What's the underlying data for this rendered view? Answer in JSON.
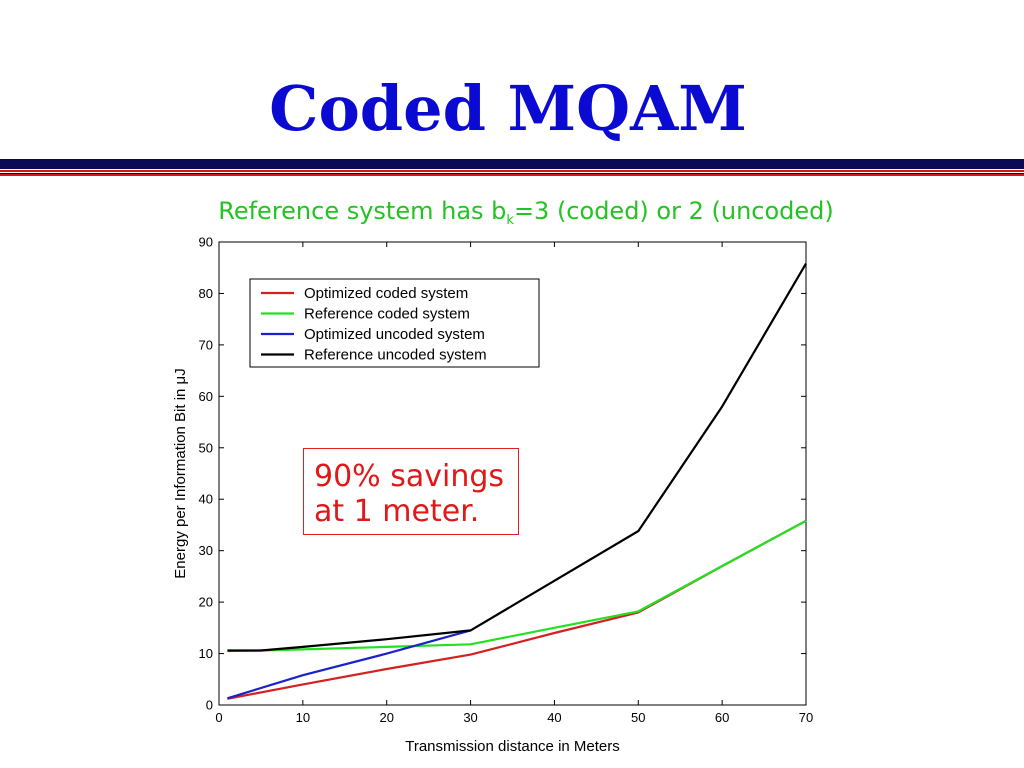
{
  "slide": {
    "title": "Coded MQAM",
    "subtitle_main": "Reference system has b",
    "subtitle_sub": "k",
    "subtitle_rest": "=3 (coded) or 2 (uncoded)",
    "callout_line1": "90% savings",
    "callout_line2": "at 1 meter.",
    "colors": {
      "title": "#0a0ad2",
      "subtitle": "#22c322",
      "rule_navy": "#0a0a55",
      "rule_red": "#d01818",
      "callout": "#e01818"
    }
  },
  "chart_data": {
    "type": "line",
    "xlabel": "Transmission distance in Meters",
    "ylabel": "Energy per Information Bit in μJ",
    "xlim": [
      0,
      70
    ],
    "ylim": [
      0,
      90
    ],
    "xticks": [
      0,
      10,
      20,
      30,
      40,
      50,
      60,
      70
    ],
    "yticks": [
      0,
      10,
      20,
      30,
      40,
      50,
      60,
      70,
      80,
      90
    ],
    "grid": false,
    "legend_position": "top-left",
    "series": [
      {
        "name": "Optimized coded system",
        "color": "#d42020",
        "x": [
          1,
          10,
          20,
          30,
          40,
          50,
          60,
          70
        ],
        "y": [
          1.2,
          4.0,
          7.0,
          9.8,
          14.0,
          18.0,
          27.0,
          35.8
        ]
      },
      {
        "name": "Reference coded system",
        "color": "#22e022",
        "x": [
          1,
          5,
          10,
          20,
          30,
          40,
          50,
          60,
          70
        ],
        "y": [
          10.5,
          10.6,
          10.8,
          11.3,
          11.8,
          15.0,
          18.2,
          27.0,
          35.8
        ]
      },
      {
        "name": "Optimized uncoded system",
        "color": "#1a22c8",
        "x": [
          1,
          10,
          20,
          30
        ],
        "y": [
          1.3,
          5.8,
          10.0,
          14.5
        ]
      },
      {
        "name": "Reference uncoded system",
        "color": "#000000",
        "x": [
          1,
          5,
          10,
          20,
          30,
          50,
          60,
          70
        ],
        "y": [
          10.6,
          10.6,
          11.3,
          12.8,
          14.5,
          33.8,
          58.0,
          85.8
        ]
      }
    ]
  }
}
